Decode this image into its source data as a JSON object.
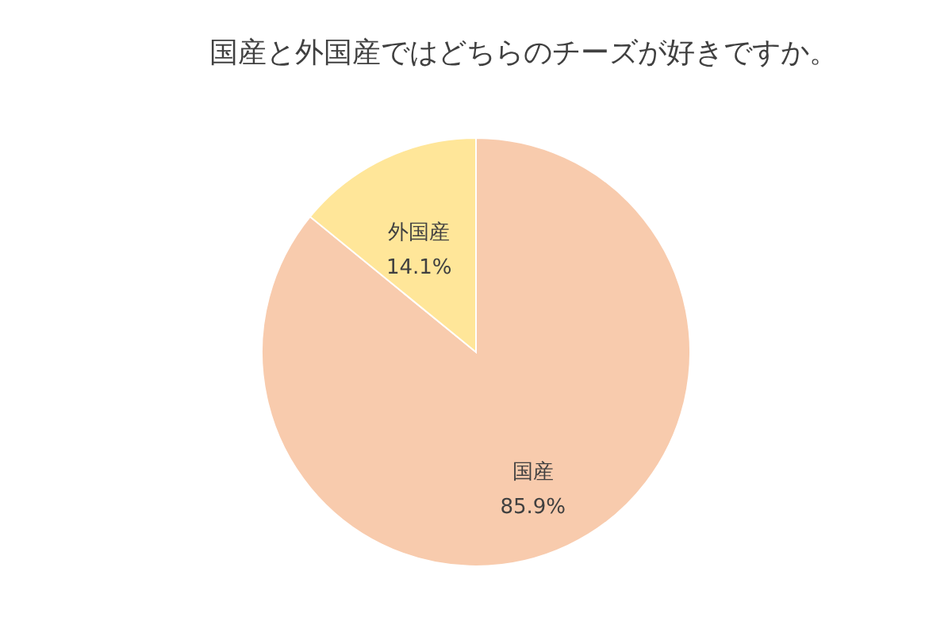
{
  "chart_data": {
    "type": "pie",
    "title": "国産と外国産ではどちらのチーズが好きですか。",
    "categories": [
      "国産",
      "外国産"
    ],
    "values": [
      85.9,
      14.1
    ],
    "colors": [
      "#f8cbad",
      "#ffe699"
    ],
    "value_labels": [
      "85.9%",
      "14.1%"
    ],
    "legend": false
  }
}
